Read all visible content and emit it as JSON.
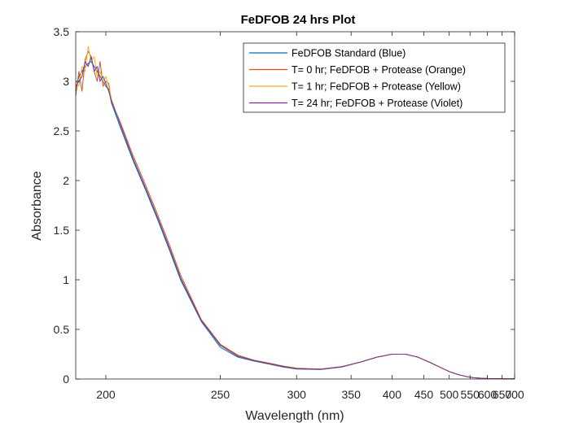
{
  "chart_data": {
    "type": "line",
    "title": "FeDFOB 24 hrs Plot",
    "xlabel": "Wavelength (nm)",
    "ylabel": "Absorbance",
    "xscale": "reciprocal",
    "xlim": [
      190,
      700
    ],
    "ylim": [
      0,
      3.5
    ],
    "xticks": [
      200,
      250,
      300,
      350,
      400,
      450,
      500,
      550,
      600,
      650,
      700
    ],
    "yticks": [
      0,
      0.5,
      1,
      1.5,
      2,
      2.5,
      3,
      3.5
    ],
    "xtick_labels": [
      "200",
      "250",
      "300",
      "350",
      "400",
      "450",
      "500",
      "550",
      "600",
      "650",
      "700"
    ],
    "ytick_labels": [
      "0",
      "0.5",
      "1",
      "1.5",
      "2",
      "2.5",
      "3",
      "3.5"
    ],
    "grid": false,
    "legend_position": "top-right",
    "series": [
      {
        "name": "FeDFOB Standard (Blue)",
        "color": "#0072BD",
        "x": [
          190,
          191,
          192,
          193,
          194,
          195,
          196,
          197,
          198,
          199,
          200,
          201,
          202,
          205,
          210,
          215,
          220,
          225,
          230,
          240,
          250,
          260,
          270,
          280,
          290,
          300,
          320,
          340,
          360,
          380,
          400,
          420,
          440,
          460,
          480,
          500,
          520,
          540,
          560,
          580,
          600,
          620,
          650,
          680,
          700
        ],
        "y": [
          2.9,
          3.05,
          3.1,
          3.15,
          3.18,
          3.2,
          3.15,
          3.1,
          3.05,
          3.0,
          2.95,
          2.92,
          2.78,
          2.55,
          2.2,
          1.9,
          1.6,
          1.3,
          1.0,
          0.58,
          0.32,
          0.22,
          0.18,
          0.15,
          0.12,
          0.1,
          0.095,
          0.12,
          0.17,
          0.22,
          0.25,
          0.25,
          0.22,
          0.17,
          0.12,
          0.075,
          0.045,
          0.025,
          0.013,
          0.008,
          0.005,
          0.004,
          0.003,
          0.003,
          0.003
        ]
      },
      {
        "name": "T= 0 hr; FeDFOB + Protease (Orange)",
        "color": "#D95319",
        "x": [
          190,
          191,
          192,
          193,
          194,
          195,
          196,
          197,
          198,
          199,
          200,
          201,
          202,
          205,
          210,
          215,
          220,
          225,
          230,
          240,
          250,
          260,
          270,
          280,
          290,
          300,
          320,
          340,
          360,
          380,
          400,
          420,
          440,
          460,
          480,
          500,
          520,
          540,
          560,
          580,
          600,
          620,
          650,
          680,
          700
        ],
        "y": [
          2.85,
          3.1,
          2.9,
          3.22,
          3.3,
          3.25,
          3.1,
          3.0,
          3.2,
          2.95,
          3.0,
          2.98,
          2.8,
          2.6,
          2.25,
          1.95,
          1.65,
          1.35,
          1.05,
          0.6,
          0.35,
          0.24,
          0.19,
          0.16,
          0.13,
          0.11,
          0.1,
          0.125,
          0.17,
          0.22,
          0.25,
          0.25,
          0.22,
          0.17,
          0.12,
          0.075,
          0.045,
          0.025,
          0.013,
          0.008,
          0.005,
          0.004,
          0.003,
          0.003,
          0.003
        ]
      },
      {
        "name": "T= 1 hr; FeDFOB + Protease (Yellow)",
        "color": "#EDB120",
        "x": [
          190,
          191,
          192,
          193,
          194,
          195,
          196,
          197,
          198,
          199,
          200,
          201,
          202,
          205,
          210,
          215,
          220,
          225,
          230,
          240,
          250,
          260,
          270,
          280,
          290,
          300,
          320,
          340,
          360,
          380,
          400,
          420,
          440,
          460,
          480,
          500,
          520,
          540,
          560,
          580,
          600,
          620,
          650,
          680,
          700
        ],
        "y": [
          3.0,
          2.95,
          3.15,
          3.1,
          3.35,
          3.2,
          3.25,
          3.05,
          3.1,
          3.0,
          3.05,
          2.95,
          2.82,
          2.58,
          2.22,
          1.92,
          1.62,
          1.32,
          1.02,
          0.59,
          0.34,
          0.23,
          0.185,
          0.155,
          0.125,
          0.105,
          0.098,
          0.123,
          0.17,
          0.22,
          0.25,
          0.25,
          0.22,
          0.17,
          0.12,
          0.075,
          0.045,
          0.025,
          0.013,
          0.008,
          0.005,
          0.004,
          0.003,
          0.003,
          0.003
        ]
      },
      {
        "name": "T= 24 hr; FeDFOB + Protease (Violet)",
        "color": "#7E2F8E",
        "x": [
          190,
          191,
          192,
          193,
          194,
          195,
          196,
          197,
          198,
          199,
          200,
          201,
          202,
          205,
          210,
          215,
          220,
          225,
          230,
          240,
          250,
          260,
          270,
          280,
          290,
          300,
          320,
          340,
          360,
          380,
          400,
          420,
          440,
          460,
          480,
          500,
          520,
          540,
          560,
          580,
          600,
          620,
          650,
          680,
          700
        ],
        "y": [
          2.95,
          3.0,
          3.05,
          3.2,
          3.15,
          3.25,
          3.1,
          3.15,
          3.0,
          3.05,
          2.98,
          2.9,
          2.8,
          2.58,
          2.22,
          1.92,
          1.62,
          1.32,
          1.02,
          0.59,
          0.34,
          0.23,
          0.185,
          0.155,
          0.125,
          0.105,
          0.098,
          0.123,
          0.17,
          0.22,
          0.25,
          0.25,
          0.22,
          0.17,
          0.12,
          0.075,
          0.045,
          0.025,
          0.013,
          0.008,
          0.005,
          0.004,
          0.003,
          0.003,
          0.003
        ]
      }
    ]
  }
}
